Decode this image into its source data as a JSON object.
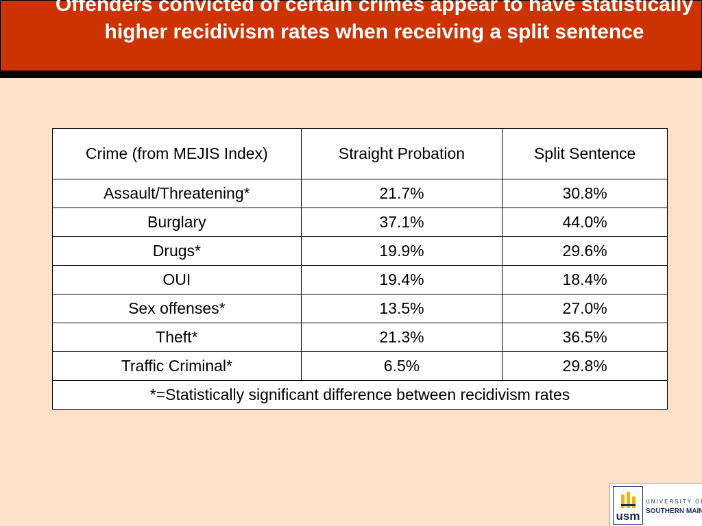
{
  "slide": {
    "title": "Offenders convicted of certain crimes appear to have statistically higher recidivism rates when receiving a split sentence"
  },
  "table": {
    "headers": [
      "Crime (from MEJIS Index)",
      "Straight Probation",
      "Split Sentence"
    ],
    "rows": [
      [
        "Assault/Threatening*",
        "21.7%",
        "30.8%"
      ],
      [
        "Burglary",
        "37.1%",
        "44.0%"
      ],
      [
        "Drugs*",
        "19.9%",
        "29.6%"
      ],
      [
        "OUI",
        "19.4%",
        "18.4%"
      ],
      [
        "Sex offenses*",
        "13.5%",
        "27.0%"
      ],
      [
        "Theft*",
        "21.3%",
        "36.5%"
      ],
      [
        "Traffic Criminal*",
        "6.5%",
        "29.8%"
      ]
    ],
    "footnote": "*=Statistically significant difference between recidivism rates"
  },
  "logo": {
    "abbr": "usm",
    "line1": "UNIVERSITY OF",
    "line2": "SOUTHERN MAINE"
  },
  "colors": {
    "background": "#FFE0C8",
    "title_bar": "#CC3300",
    "title_text": "#FFFFFF",
    "logo_navy": "#1A2A5E",
    "logo_gold": "#F2B400"
  }
}
